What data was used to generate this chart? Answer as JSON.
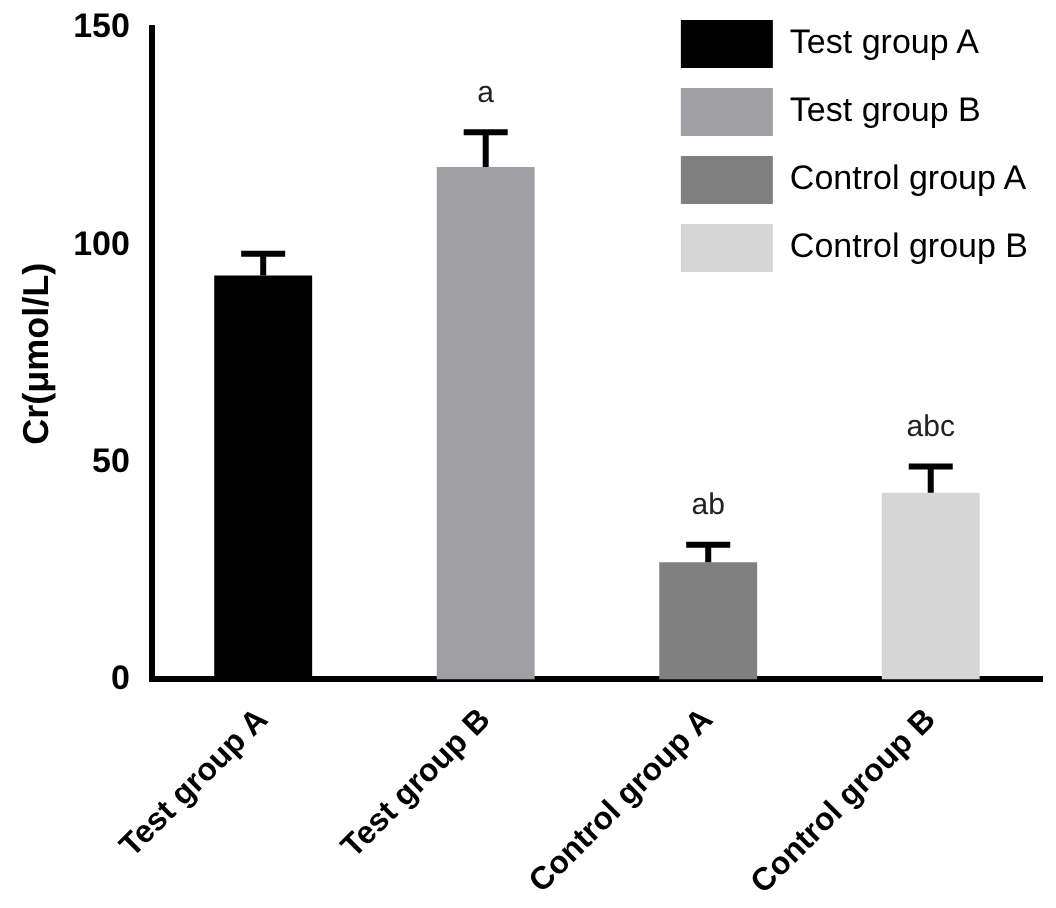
{
  "chart_data": {
    "type": "bar",
    "ylabel": "Cr(μmol/L)",
    "categories": [
      "Test group A",
      "Test group B",
      "Control group A",
      "Control group B"
    ],
    "series": [
      {
        "name": "Test group A",
        "color": "#000000",
        "values": [
          93,
          null,
          null,
          null
        ],
        "errors": [
          [
            93,
            98
          ],
          null,
          null,
          null
        ]
      },
      {
        "name": "Test group B",
        "color": "#a0a0a4",
        "values": [
          null,
          118,
          null,
          null
        ],
        "errors": [
          null,
          [
            118,
            126
          ],
          null,
          null
        ]
      },
      {
        "name": "Control group A",
        "color": "#808080",
        "values": [
          null,
          null,
          27,
          null
        ],
        "errors": [
          null,
          null,
          [
            27,
            31
          ],
          null
        ]
      },
      {
        "name": "Control group B",
        "color": "#d6d6d6",
        "values": [
          null,
          null,
          null,
          43
        ],
        "errors": [
          null,
          null,
          null,
          [
            43,
            49
          ]
        ]
      }
    ],
    "ylim": [
      0,
      150
    ],
    "yticks": [
      0,
      50,
      100,
      150
    ],
    "grid": false,
    "legend": "top right",
    "annotations": [
      {
        "text": "a",
        "x": "Test group B",
        "y": 126
      },
      {
        "text": "ab",
        "x": "Control group A",
        "y": 31
      },
      {
        "text": "abc",
        "x": "Control group B",
        "y": 49
      }
    ]
  }
}
